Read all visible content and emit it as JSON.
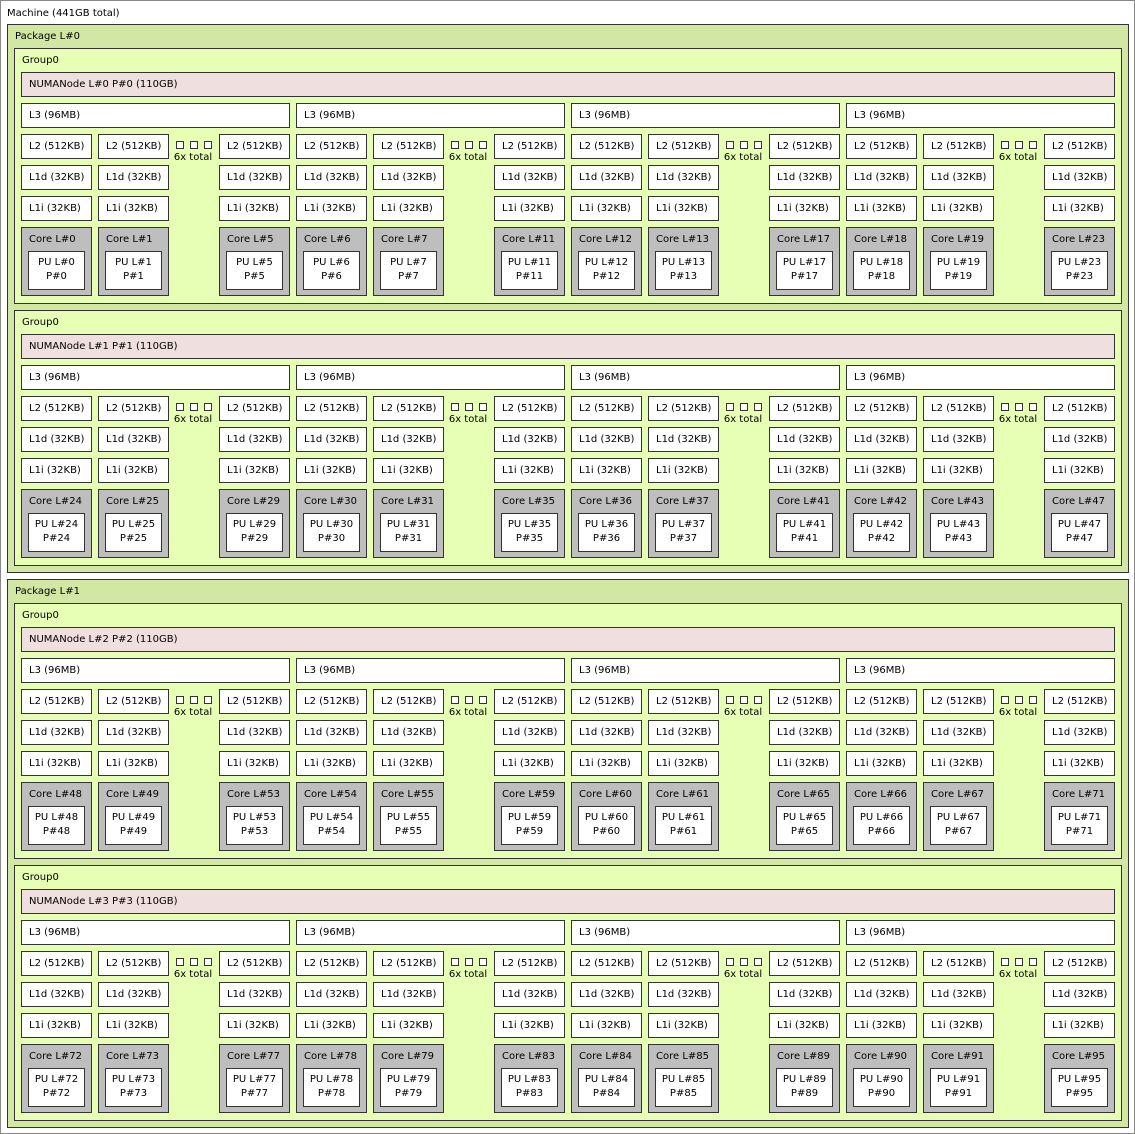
{
  "machine": {
    "label": "Machine (441GB total)",
    "packages": [
      {
        "label": "Package L#0",
        "groups": [
          {
            "label": "Group0",
            "numa": "NUMANode L#0 P#0 (110GB)",
            "cores": [
              0,
              1,
              5,
              6,
              7,
              11,
              12,
              13,
              17,
              18,
              19,
              23
            ]
          },
          {
            "label": "Group0",
            "numa": "NUMANode L#1 P#1 (110GB)",
            "cores": [
              24,
              25,
              29,
              30,
              31,
              35,
              36,
              37,
              41,
              42,
              43,
              47
            ]
          }
        ]
      },
      {
        "label": "Package L#1",
        "groups": [
          {
            "label": "Group0",
            "numa": "NUMANode L#2 P#2 (110GB)",
            "cores": [
              48,
              49,
              53,
              54,
              55,
              59,
              60,
              61,
              65,
              66,
              67,
              71
            ]
          },
          {
            "label": "Group0",
            "numa": "NUMANode L#3 P#3 (110GB)",
            "cores": [
              72,
              73,
              77,
              78,
              79,
              83,
              84,
              85,
              89,
              90,
              91,
              95
            ]
          }
        ]
      }
    ]
  },
  "labels": {
    "l3": "L3 (96MB)",
    "l2": "L2 (512KB)",
    "l1d": "L1d (32KB)",
    "l1i": "L1i (32KB)",
    "more": "6x total",
    "core_prefix": "Core L#",
    "pu_prefix": "PU L#",
    "p_prefix": "P#"
  },
  "colors": {
    "package": "#d2e7a4",
    "group": "#e7ffb5",
    "numa": "#efdfde",
    "core": "#bebebe",
    "cache": "#ffffff"
  }
}
